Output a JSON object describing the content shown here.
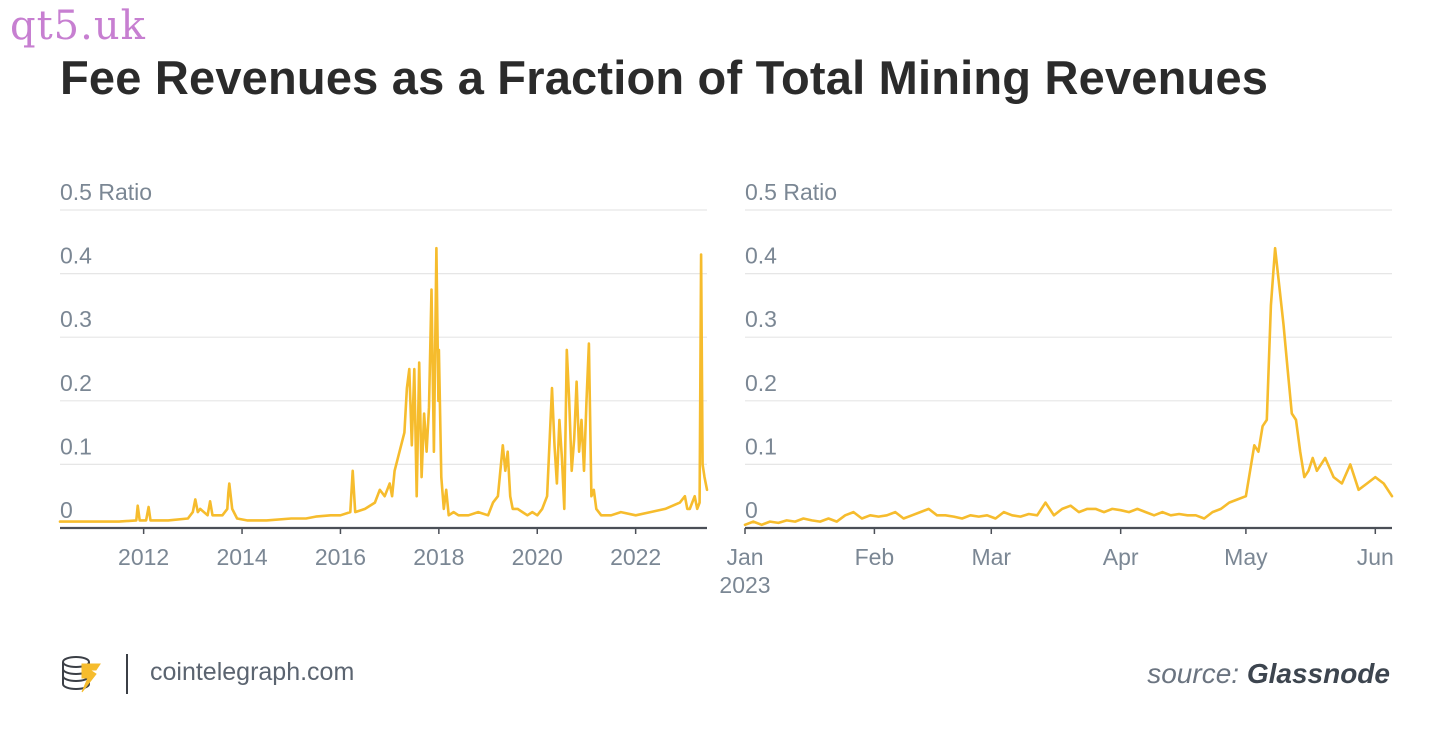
{
  "watermark": "qt5.uk",
  "title": "Fee Revenues as a Fraction of Total Mining Revenues",
  "colors": {
    "series": "#f6bc2d",
    "axis": "#4b4f57",
    "grid": "#e6e6e6",
    "tick": "#7b8794",
    "title": "#2b2b2b"
  },
  "footer": {
    "logo_icon": "cointelegraph-logo-icon",
    "site": "cointelegraph.com",
    "source_prefix": "source:",
    "source_name": "Glassnode"
  },
  "chart_data": [
    {
      "type": "line",
      "title": "",
      "xlabel": "",
      "ylabel": "Ratio",
      "ylim": [
        0,
        0.5
      ],
      "yticks": [
        0,
        0.1,
        0.2,
        0.3,
        0.4,
        0.5
      ],
      "ytick_labels": [
        "0",
        "0.1",
        "0.2",
        "0.3",
        "0.4",
        "0.5 Ratio"
      ],
      "xlim": [
        2010.3,
        2023.45
      ],
      "xticks": [
        2012,
        2014,
        2016,
        2018,
        2020,
        2022
      ],
      "xtick_labels": [
        "2012",
        "2014",
        "2016",
        "2018",
        "2020",
        "2022"
      ],
      "grid": true,
      "series": [
        {
          "x": [
            2010.3,
            2011.0,
            2011.5,
            2011.85,
            2011.88,
            2011.92,
            2012.05,
            2012.1,
            2012.14,
            2012.5,
            2012.9,
            2013.0,
            2013.05,
            2013.1,
            2013.15,
            2013.3,
            2013.35,
            2013.4,
            2013.6,
            2013.7,
            2013.72,
            2013.74,
            2013.8,
            2013.9,
            2014.1,
            2014.5,
            2015.0,
            2015.3,
            2015.5,
            2015.8,
            2016.0,
            2016.2,
            2016.25,
            2016.3,
            2016.5,
            2016.7,
            2016.8,
            2016.9,
            2017.0,
            2017.05,
            2017.1,
            2017.2,
            2017.3,
            2017.35,
            2017.4,
            2017.45,
            2017.5,
            2017.55,
            2017.6,
            2017.65,
            2017.7,
            2017.75,
            2017.8,
            2017.85,
            2017.9,
            2017.95,
            2017.99,
            2018.0,
            2018.05,
            2018.1,
            2018.15,
            2018.2,
            2018.3,
            2018.4,
            2018.6,
            2018.8,
            2019.0,
            2019.1,
            2019.2,
            2019.3,
            2019.35,
            2019.4,
            2019.45,
            2019.5,
            2019.6,
            2019.7,
            2019.8,
            2019.9,
            2020.0,
            2020.1,
            2020.2,
            2020.3,
            2020.35,
            2020.4,
            2020.45,
            2020.5,
            2020.55,
            2020.6,
            2020.65,
            2020.7,
            2020.75,
            2020.8,
            2020.85,
            2020.9,
            2020.95,
            2021.0,
            2021.05,
            2021.1,
            2021.15,
            2021.2,
            2021.3,
            2021.4,
            2021.5,
            2021.7,
            2022.0,
            2022.3,
            2022.6,
            2022.9,
            2023.0,
            2023.05,
            2023.1,
            2023.15,
            2023.2,
            2023.25,
            2023.3,
            2023.33,
            2023.36,
            2023.4,
            2023.45
          ],
          "y": [
            0.01,
            0.01,
            0.01,
            0.012,
            0.035,
            0.012,
            0.012,
            0.033,
            0.012,
            0.012,
            0.015,
            0.025,
            0.045,
            0.025,
            0.03,
            0.02,
            0.042,
            0.02,
            0.02,
            0.03,
            0.055,
            0.07,
            0.03,
            0.015,
            0.012,
            0.012,
            0.015,
            0.015,
            0.018,
            0.02,
            0.02,
            0.025,
            0.09,
            0.025,
            0.03,
            0.04,
            0.06,
            0.05,
            0.07,
            0.05,
            0.09,
            0.12,
            0.15,
            0.22,
            0.25,
            0.13,
            0.25,
            0.05,
            0.26,
            0.08,
            0.18,
            0.12,
            0.19,
            0.375,
            0.12,
            0.44,
            0.2,
            0.28,
            0.08,
            0.03,
            0.06,
            0.02,
            0.025,
            0.02,
            0.02,
            0.025,
            0.02,
            0.04,
            0.05,
            0.13,
            0.09,
            0.12,
            0.05,
            0.03,
            0.03,
            0.025,
            0.02,
            0.025,
            0.02,
            0.03,
            0.05,
            0.22,
            0.13,
            0.07,
            0.17,
            0.11,
            0.03,
            0.28,
            0.2,
            0.09,
            0.14,
            0.23,
            0.12,
            0.17,
            0.09,
            0.2,
            0.29,
            0.05,
            0.06,
            0.03,
            0.02,
            0.02,
            0.02,
            0.025,
            0.02,
            0.025,
            0.03,
            0.04,
            0.05,
            0.03,
            0.03,
            0.04,
            0.05,
            0.03,
            0.04,
            0.43,
            0.1,
            0.08,
            0.06
          ]
        }
      ]
    },
    {
      "type": "line",
      "title": "",
      "xlabel": "",
      "ylabel": "Ratio",
      "ylim": [
        0,
        0.5
      ],
      "yticks": [
        0,
        0.1,
        0.2,
        0.3,
        0.4,
        0.5
      ],
      "ytick_labels": [
        "0",
        "0.1",
        "0.2",
        "0.3",
        "0.4",
        "0.5 Ratio"
      ],
      "xlim": [
        "2023-01-01",
        "2023-06-05"
      ],
      "xticks": [
        "2023-01-01",
        "2023-02-01",
        "2023-03-01",
        "2023-04-01",
        "2023-05-01",
        "2023-06-01"
      ],
      "xtick_labels": [
        "Jan",
        "Feb",
        "Mar",
        "Apr",
        "May",
        "Jun"
      ],
      "xtick_sublabel": "2023",
      "grid": true,
      "series": [
        {
          "x": [
            "2023-01-01",
            "2023-01-03",
            "2023-01-05",
            "2023-01-07",
            "2023-01-09",
            "2023-01-11",
            "2023-01-13",
            "2023-01-15",
            "2023-01-17",
            "2023-01-19",
            "2023-01-21",
            "2023-01-23",
            "2023-01-25",
            "2023-01-27",
            "2023-01-29",
            "2023-01-31",
            "2023-02-02",
            "2023-02-04",
            "2023-02-06",
            "2023-02-08",
            "2023-02-10",
            "2023-02-12",
            "2023-02-14",
            "2023-02-16",
            "2023-02-18",
            "2023-02-20",
            "2023-02-22",
            "2023-02-24",
            "2023-02-26",
            "2023-02-28",
            "2023-03-02",
            "2023-03-04",
            "2023-03-06",
            "2023-03-08",
            "2023-03-10",
            "2023-03-12",
            "2023-03-14",
            "2023-03-16",
            "2023-03-18",
            "2023-03-20",
            "2023-03-22",
            "2023-03-24",
            "2023-03-26",
            "2023-03-28",
            "2023-03-30",
            "2023-04-01",
            "2023-04-03",
            "2023-04-05",
            "2023-04-07",
            "2023-04-09",
            "2023-04-11",
            "2023-04-13",
            "2023-04-15",
            "2023-04-17",
            "2023-04-19",
            "2023-04-21",
            "2023-04-23",
            "2023-04-25",
            "2023-04-27",
            "2023-04-29",
            "2023-05-01",
            "2023-05-03",
            "2023-05-04",
            "2023-05-05",
            "2023-05-06",
            "2023-05-07",
            "2023-05-08",
            "2023-05-09",
            "2023-05-10",
            "2023-05-11",
            "2023-05-12",
            "2023-05-13",
            "2023-05-14",
            "2023-05-15",
            "2023-05-16",
            "2023-05-17",
            "2023-05-18",
            "2023-05-20",
            "2023-05-22",
            "2023-05-24",
            "2023-05-26",
            "2023-05-28",
            "2023-05-30",
            "2023-06-01",
            "2023-06-03",
            "2023-06-05"
          ],
          "y": [
            0.005,
            0.01,
            0.005,
            0.01,
            0.008,
            0.012,
            0.01,
            0.015,
            0.012,
            0.01,
            0.015,
            0.01,
            0.02,
            0.025,
            0.015,
            0.02,
            0.018,
            0.02,
            0.025,
            0.015,
            0.02,
            0.025,
            0.03,
            0.02,
            0.02,
            0.018,
            0.015,
            0.02,
            0.018,
            0.02,
            0.015,
            0.025,
            0.02,
            0.018,
            0.022,
            0.02,
            0.04,
            0.02,
            0.03,
            0.035,
            0.025,
            0.03,
            0.03,
            0.025,
            0.03,
            0.028,
            0.025,
            0.03,
            0.025,
            0.02,
            0.025,
            0.02,
            0.022,
            0.02,
            0.02,
            0.015,
            0.025,
            0.03,
            0.04,
            0.045,
            0.05,
            0.13,
            0.12,
            0.16,
            0.17,
            0.35,
            0.44,
            0.38,
            0.32,
            0.25,
            0.18,
            0.17,
            0.12,
            0.08,
            0.09,
            0.11,
            0.09,
            0.11,
            0.08,
            0.07,
            0.1,
            0.06,
            0.07,
            0.08,
            0.07,
            0.05
          ]
        }
      ]
    }
  ]
}
